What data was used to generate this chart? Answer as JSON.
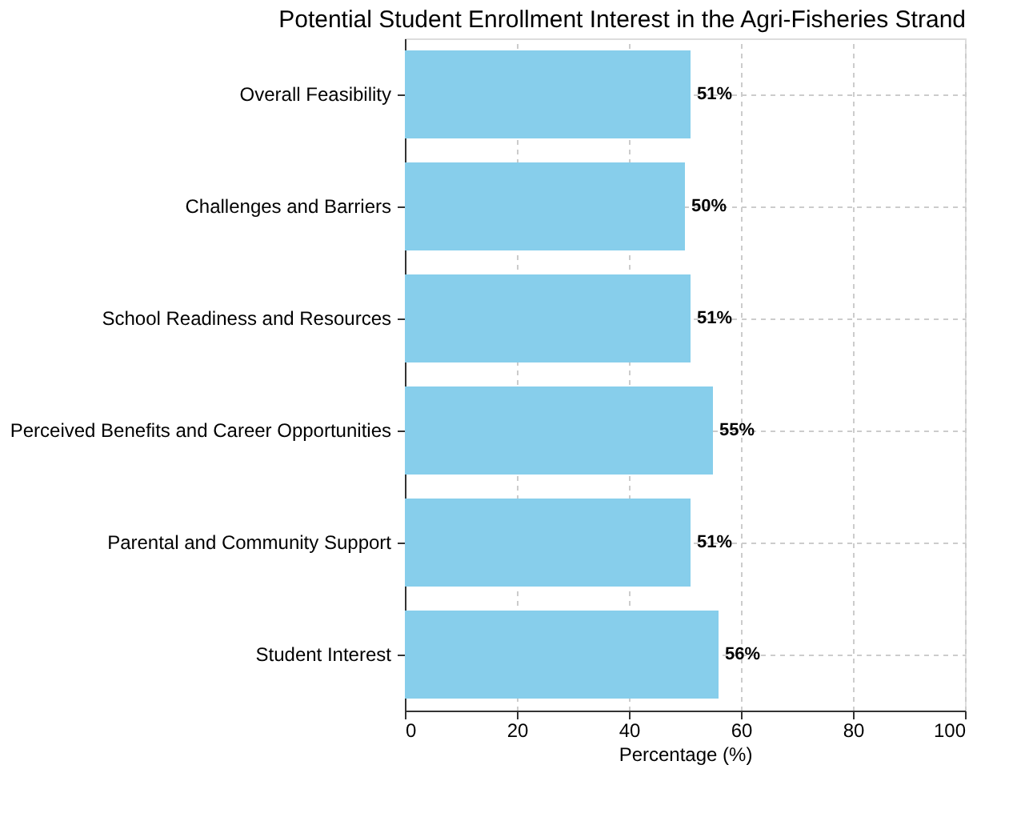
{
  "chart_data": {
    "type": "bar",
    "orientation": "horizontal",
    "title": "Potential Student Enrollment Interest in the Agri-Fisheries Strand",
    "xlabel": "Percentage (%)",
    "categories": [
      "Overall Feasibility",
      "Challenges and Barriers",
      "School Readiness and Resources",
      "Perceived Benefits and Career Opportunities",
      "Parental and Community Support",
      "Student Interest"
    ],
    "values": [
      51,
      50,
      51,
      55,
      51,
      56
    ],
    "value_labels": [
      "51%",
      "50%",
      "51%",
      "55%",
      "51%",
      "56%"
    ],
    "color": "#87ceeb",
    "xlim": [
      0,
      100
    ],
    "xticks": [
      0,
      20,
      40,
      60,
      80,
      100
    ],
    "grid": true
  }
}
